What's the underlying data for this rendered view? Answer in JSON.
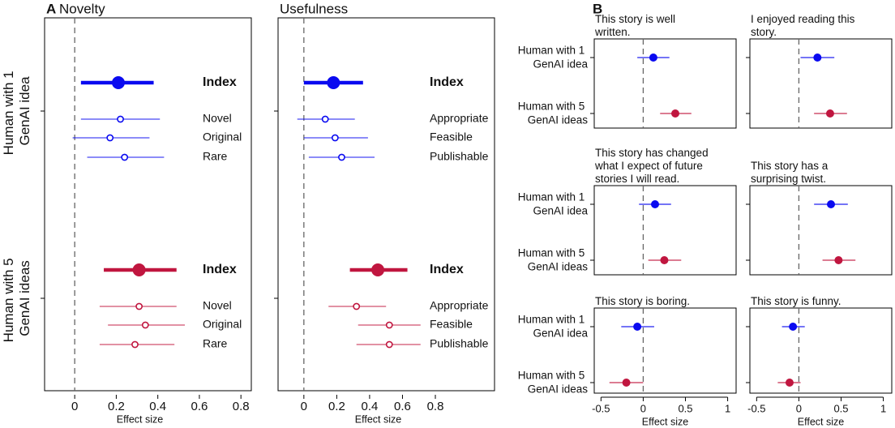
{
  "chart_data": [
    {
      "type": "forest",
      "panel": "A",
      "title": "Novelty",
      "xlabel": "Effect size",
      "xlim": [
        -0.145,
        0.85
      ],
      "xticks": [
        0,
        0.2,
        0.4,
        0.6,
        0.8
      ],
      "groups": [
        "Human with 1 GenAI idea",
        "Human with 5 GenAI ideas"
      ],
      "series": [
        {
          "color": "#0a0af0",
          "labels": [
            "Index",
            "Novel",
            "Original",
            "Rare"
          ],
          "values": [
            0.21,
            0.22,
            0.17,
            0.24
          ],
          "lower": [
            0.03,
            0.03,
            -0.01,
            0.06
          ],
          "upper": [
            0.38,
            0.41,
            0.36,
            0.43
          ]
        },
        {
          "color": "#c0163f",
          "labels": [
            "Index",
            "Novel",
            "Original",
            "Rare"
          ],
          "values": [
            0.31,
            0.31,
            0.34,
            0.29
          ],
          "lower": [
            0.14,
            0.12,
            0.16,
            0.12
          ],
          "upper": [
            0.49,
            0.49,
            0.53,
            0.48
          ]
        }
      ]
    },
    {
      "type": "forest",
      "title": "Usefulness",
      "xlabel": "Effect size",
      "xlim": [
        -0.157,
        1.16
      ],
      "xticks": [
        0,
        0.2,
        0.4,
        0.6,
        0.8
      ],
      "series": [
        {
          "color": "#0a0af0",
          "labels": [
            "Index",
            "Appropriate",
            "Feasible",
            "Publishable"
          ],
          "values": [
            0.18,
            0.13,
            0.19,
            0.23
          ],
          "lower": [
            0,
            -0.04,
            0,
            0.03
          ],
          "upper": [
            0.36,
            0.31,
            0.39,
            0.43
          ]
        },
        {
          "color": "#c0163f",
          "labels": [
            "Index",
            "Appropriate",
            "Feasible",
            "Publishable"
          ],
          "values": [
            0.45,
            0.32,
            0.52,
            0.52
          ],
          "lower": [
            0.28,
            0.15,
            0.33,
            0.32
          ],
          "upper": [
            0.63,
            0.5,
            0.71,
            0.71
          ]
        }
      ]
    },
    {
      "type": "forest",
      "panel": "B",
      "title": "This story is well written.",
      "xlim": [
        -0.58,
        1.1
      ],
      "groups": [
        "Human with 1 GenAI idea",
        "Human with 5 GenAI ideas"
      ],
      "series": [
        {
          "color": "#0a0af0",
          "values": [
            0.12
          ],
          "lower": [
            -0.07
          ],
          "upper": [
            0.31
          ]
        },
        {
          "color": "#c0163f",
          "values": [
            0.38
          ],
          "lower": [
            0.2
          ],
          "upper": [
            0.57
          ]
        }
      ]
    },
    {
      "type": "forest",
      "title": "I enjoyed reading this story.",
      "xlim": [
        -0.58,
        1.1
      ],
      "series": [
        {
          "color": "#0a0af0",
          "values": [
            0.22
          ],
          "lower": [
            0.02
          ],
          "upper": [
            0.42
          ]
        },
        {
          "color": "#c0163f",
          "values": [
            0.37
          ],
          "lower": [
            0.18
          ],
          "upper": [
            0.57
          ]
        }
      ]
    },
    {
      "type": "forest",
      "title": "This story has changed what I expect of future stories I will read.",
      "xlim": [
        -0.58,
        1.1
      ],
      "groups": [
        "Human with 1 GenAI idea",
        "Human with 5 GenAI ideas"
      ],
      "series": [
        {
          "color": "#0a0af0",
          "values": [
            0.14
          ],
          "lower": [
            -0.05
          ],
          "upper": [
            0.33
          ]
        },
        {
          "color": "#c0163f",
          "values": [
            0.25
          ],
          "lower": [
            0.06
          ],
          "upper": [
            0.45
          ]
        }
      ]
    },
    {
      "type": "forest",
      "title": "This story has a surprising twist.",
      "xlim": [
        -0.58,
        1.1
      ],
      "series": [
        {
          "color": "#0a0af0",
          "values": [
            0.38
          ],
          "lower": [
            0.18
          ],
          "upper": [
            0.58
          ]
        },
        {
          "color": "#c0163f",
          "values": [
            0.47
          ],
          "lower": [
            0.28
          ],
          "upper": [
            0.67
          ]
        }
      ]
    },
    {
      "type": "forest",
      "title": "This story is boring.",
      "xlabel": "Effect size",
      "xlim": [
        -0.58,
        1.1
      ],
      "xticks": [
        -0.5,
        0,
        0.5,
        1
      ],
      "groups": [
        "Human with 1 GenAI idea",
        "Human with 5 GenAI ideas"
      ],
      "series": [
        {
          "color": "#0a0af0",
          "values": [
            -0.07
          ],
          "lower": [
            -0.26
          ],
          "upper": [
            0.13
          ]
        },
        {
          "color": "#c0163f",
          "values": [
            -0.2
          ],
          "lower": [
            -0.4
          ],
          "upper": [
            0
          ]
        }
      ]
    },
    {
      "type": "forest",
      "title": "This story is funny.",
      "xlabel": "Effect size",
      "xlim": [
        -0.58,
        1.1
      ],
      "xticks": [
        -0.5,
        0,
        0.5,
        1
      ],
      "series": [
        {
          "color": "#0a0af0",
          "values": [
            -0.07
          ],
          "lower": [
            -0.2
          ],
          "upper": [
            0.07
          ]
        },
        {
          "color": "#c0163f",
          "values": [
            -0.11
          ],
          "lower": [
            -0.25
          ],
          "upper": [
            0.02
          ]
        }
      ]
    }
  ]
}
